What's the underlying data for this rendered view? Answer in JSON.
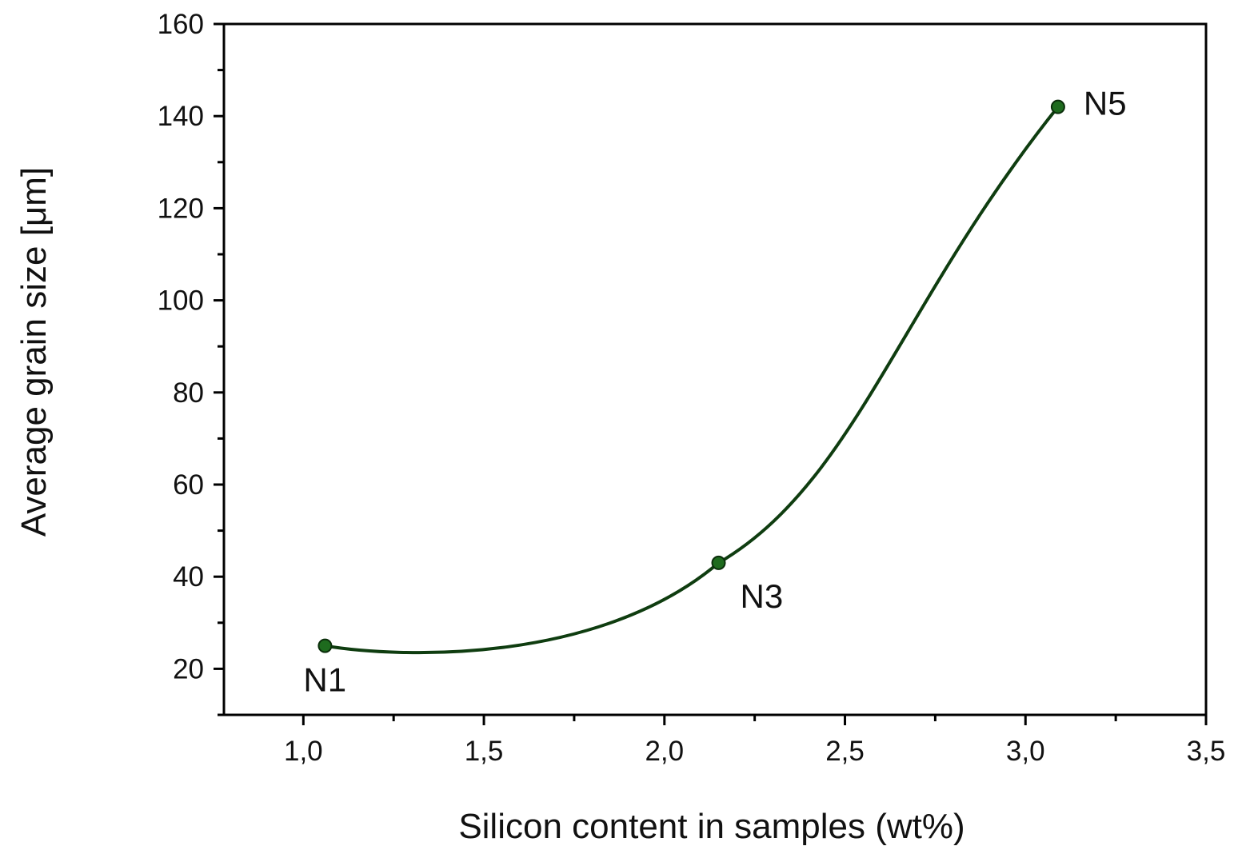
{
  "chart_data": {
    "type": "line",
    "title": "",
    "xlabel": "Silicon content in samples (wt%)",
    "ylabel": "Average grain size [μm]",
    "xlim": [
      0.78,
      3.5
    ],
    "ylim": [
      10,
      160
    ],
    "x_ticks": [
      1.0,
      1.5,
      2.0,
      2.5,
      3.0,
      3.5
    ],
    "x_tick_labels": [
      "1,0",
      "1,5",
      "2,0",
      "2,5",
      "3,0",
      "3,5"
    ],
    "y_ticks": [
      20,
      40,
      60,
      80,
      100,
      120,
      140,
      160
    ],
    "y_tick_labels": [
      "20",
      "40",
      "60",
      "80",
      "100",
      "120",
      "140",
      "160"
    ],
    "grid": false,
    "legend": "none",
    "series": [
      {
        "color": "#1e6b1e",
        "x": [
          1.06,
          2.15,
          3.09
        ],
        "y": [
          25,
          43,
          142
        ],
        "point_labels": [
          "N1",
          "N3",
          "N5"
        ]
      }
    ],
    "smooth_curve": true
  }
}
